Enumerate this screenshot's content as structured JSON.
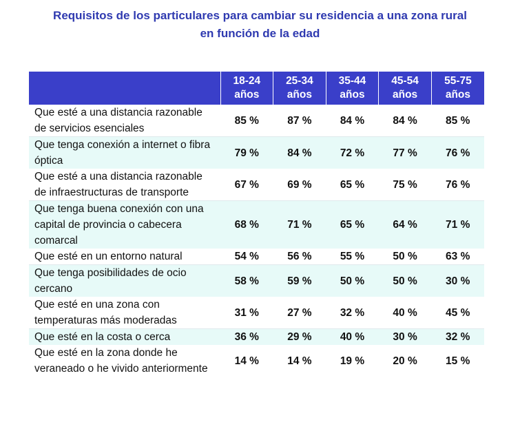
{
  "title": {
    "line1": "Requisitos de los particulares para cambiar su residencia a una zona rural",
    "line2": "en función de la edad"
  },
  "header": {
    "corner": "",
    "columns": [
      {
        "l1": "18-24",
        "l2": "años"
      },
      {
        "l1": "25-34",
        "l2": "años"
      },
      {
        "l1": "35-44",
        "l2": "años"
      },
      {
        "l1": "45-54",
        "l2": "años"
      },
      {
        "l1": "55-75",
        "l2": "años"
      }
    ]
  },
  "rows": [
    {
      "label": "Que esté a una distancia razonable de servicios esenciales",
      "values": [
        "85 %",
        "87 %",
        "84 %",
        "84 %",
        "85 %"
      ]
    },
    {
      "label": "Que tenga conexión a internet o fibra óptica",
      "values": [
        "79 %",
        "84 %",
        "72 %",
        "77 %",
        "76 %"
      ]
    },
    {
      "label": "Que esté a una distancia razonable de infraestructuras de transporte",
      "values": [
        "67 %",
        "69 %",
        "65 %",
        "75 %",
        "76 %"
      ]
    },
    {
      "label": "Que tenga buena conexión con una capital de provincia o cabecera comarcal",
      "values": [
        "68 %",
        "71 %",
        "65 %",
        "64 %",
        "71 %"
      ]
    },
    {
      "label": "Que esté en un entorno natural",
      "values": [
        "54 %",
        "56 %",
        "55 %",
        "50 %",
        "63 %"
      ]
    },
    {
      "label": "Que tenga posibilidades de ocio cercano",
      "values": [
        "58 %",
        "59 %",
        "50 %",
        "50 %",
        "30 %"
      ]
    },
    {
      "label": "Que esté en una zona con temperaturas más moderadas",
      "values": [
        "31 %",
        "27 %",
        "32 %",
        "40 %",
        "45 %"
      ]
    },
    {
      "label": "Que esté en la costa o cerca",
      "values": [
        "36 %",
        "29 %",
        "40 %",
        "30 %",
        "32 %"
      ]
    },
    {
      "label": "Que esté en la zona donde he veraneado o he vivido anteriormente",
      "values": [
        "14 %",
        "14 %",
        "19 %",
        "20 %",
        "15 %"
      ]
    }
  ],
  "colors": {
    "title": "#2f3ab0",
    "header_bg": "#3a3fc9",
    "header_text": "#ffffff",
    "alt_row_bg": "#e7faf8"
  }
}
